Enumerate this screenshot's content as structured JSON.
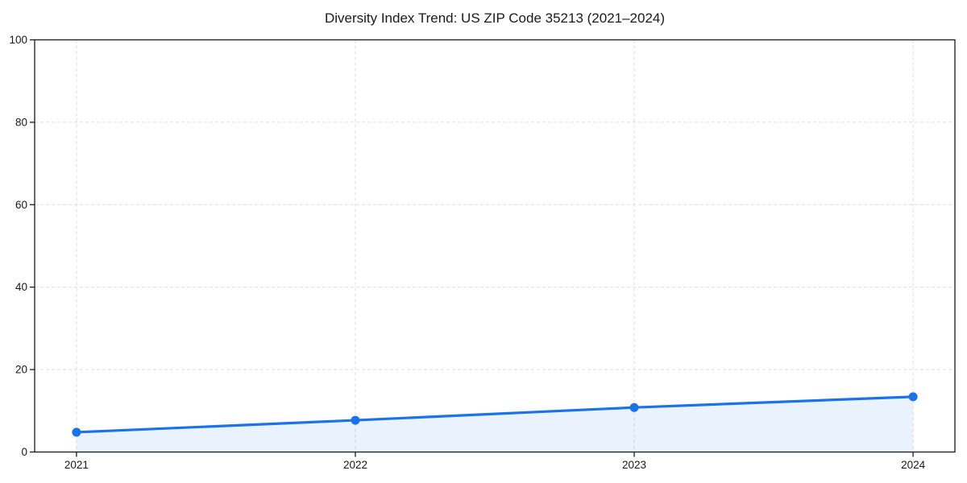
{
  "title": "Diversity Index Trend: US ZIP Code 35213 (2021–2024)",
  "chart_data": {
    "type": "line",
    "title": "Diversity Index Trend: US ZIP Code 35213 (2021–2024)",
    "x": [
      2021,
      2022,
      2023,
      2024
    ],
    "xtick_labels": [
      "2021",
      "2022",
      "2023",
      "2024"
    ],
    "series": [
      {
        "name": "Diversity Index",
        "values": [
          4.8,
          7.7,
          10.8,
          13.4
        ]
      }
    ],
    "xlabel": "",
    "ylabel": "",
    "xlim": [
      2020.85,
      2024.15
    ],
    "ylim": [
      0,
      100
    ],
    "yticks": [
      0,
      20,
      40,
      60,
      80,
      100
    ],
    "grid": "dashed, horizontal and vertical at ticks",
    "legend_position": "none",
    "area_fill_between_first_and_last_point": true,
    "style": {
      "line_color": "#1a73e8",
      "marker": "circle",
      "marker_radius": 5.5,
      "line_width": 3.2,
      "fill_color": "rgba(26,115,232,0.09)",
      "grid_color": "#dddddd",
      "spine_color": "#1a1a1a",
      "tick_label_color": "#1a1a1a",
      "background": "#ffffff"
    }
  }
}
